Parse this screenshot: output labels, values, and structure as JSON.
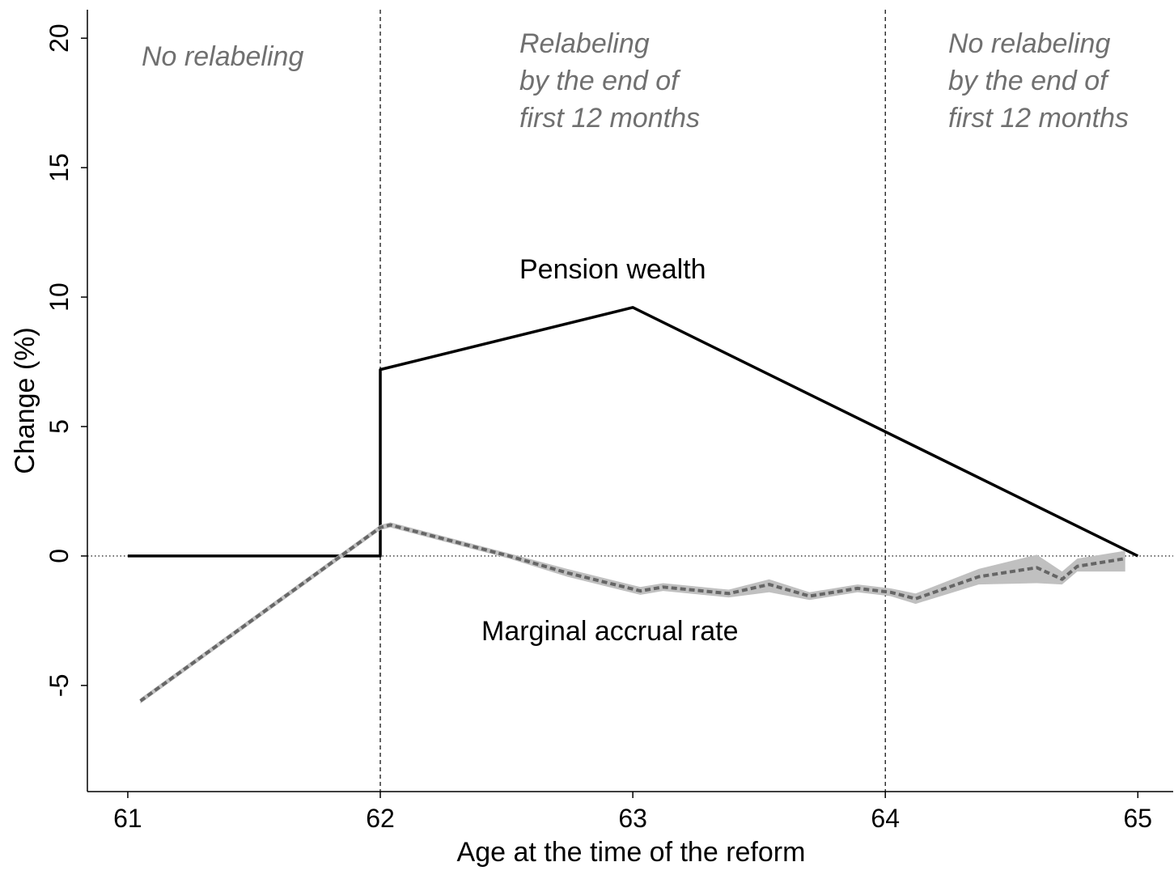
{
  "chart_data": {
    "type": "line",
    "xlabel": "Age at the time of the reform",
    "ylabel": "Change (%)",
    "xlim": [
      60.84,
      65.14
    ],
    "ylim": [
      -9.1,
      21.1
    ],
    "xticks": [
      61,
      62,
      63,
      64,
      65
    ],
    "yticks": [
      -5,
      0,
      5,
      10,
      15,
      20
    ],
    "vlines": [
      62,
      64
    ],
    "hlines": [
      0
    ],
    "series": [
      {
        "name": "Pension wealth",
        "color": "#000000",
        "dash": false,
        "x": [
          61,
          62,
          62,
          63,
          65
        ],
        "values": [
          0,
          0,
          7.2,
          9.6,
          0
        ]
      },
      {
        "name": "Marginal accrual rate",
        "color": "#666666",
        "dash": true,
        "band_color": "#c0c0c0",
        "x": [
          61.05,
          62,
          62.04,
          62.51,
          62.74,
          63.03,
          63.12,
          63.38,
          63.54,
          63.7,
          63.89,
          64.02,
          64.12,
          64.37,
          64.6,
          64.7,
          64.76,
          64.95
        ],
        "values": [
          -5.6,
          1.1,
          1.2,
          0,
          -0.65,
          -1.35,
          -1.2,
          -1.45,
          -1.1,
          -1.55,
          -1.25,
          -1.4,
          -1.65,
          -0.8,
          -0.45,
          -0.9,
          -0.4,
          -0.1
        ],
        "lower": [
          -5.7,
          1.0,
          1.1,
          -0.1,
          -0.8,
          -1.5,
          -1.35,
          -1.6,
          -1.4,
          -1.7,
          -1.4,
          -1.55,
          -1.85,
          -1.1,
          -1.05,
          -1.1,
          -0.6,
          -0.6
        ],
        "upper": [
          -5.5,
          1.2,
          1.3,
          0.1,
          -0.5,
          -1.2,
          -1.05,
          -1.3,
          -0.9,
          -1.4,
          -1.1,
          -1.25,
          -1.45,
          -0.5,
          0.05,
          -0.6,
          -0.1,
          0.2
        ]
      }
    ],
    "annotations": [
      {
        "lines": [
          "No relabeling"
        ]
      },
      {
        "lines": [
          "Relabeling",
          "by the end of",
          "first 12 months"
        ]
      },
      {
        "lines": [
          "No relabeling",
          "by the end of",
          "first 12 months"
        ]
      },
      {
        "lines": [
          "Pension wealth"
        ]
      },
      {
        "lines": [
          "Marginal accrual rate"
        ]
      }
    ]
  }
}
